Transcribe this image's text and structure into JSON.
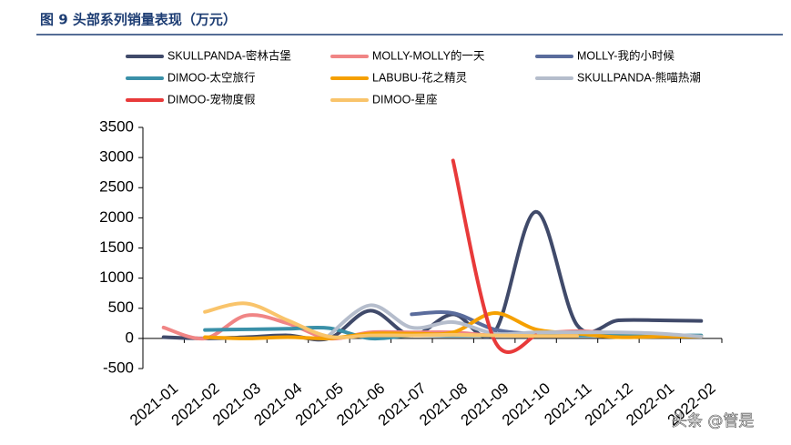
{
  "chart_data": {
    "type": "line",
    "title": "图 9  头部系列销量表现（万元）",
    "watermark": "头条 @管是",
    "categories": [
      "2021-01",
      "2021-02",
      "2021-03",
      "2021-04",
      "2021-05",
      "2021-06",
      "2021-07",
      "2021-08",
      "2021-09",
      "2021-10",
      "2021-11",
      "2021-12",
      "2022-01",
      "2022-02"
    ],
    "ylim": [
      -500,
      3500
    ],
    "yticks": [
      -500,
      0,
      500,
      1000,
      1500,
      2000,
      2500,
      3000,
      3500
    ],
    "series": [
      {
        "name": "SKULLPANDA-密林古堡",
        "color": "#404a6a",
        "values": [
          20,
          0,
          20,
          50,
          0,
          460,
          50,
          400,
          100,
          2100,
          220,
          300,
          300,
          290
        ]
      },
      {
        "name": "MOLLY-MOLLY的一天",
        "color": "#f08585",
        "values": [
          180,
          0,
          380,
          250,
          0,
          100,
          100,
          100,
          50,
          80,
          120,
          80,
          50,
          40
        ]
      },
      {
        "name": "MOLLY-我的小时候",
        "color": "#5a6c9c",
        "values": [
          null,
          null,
          null,
          null,
          null,
          null,
          400,
          420,
          150,
          80,
          100,
          80,
          null,
          null
        ]
      },
      {
        "name": "DIMOO-太空旅行",
        "color": "#3a90a8",
        "values": [
          null,
          140,
          150,
          160,
          170,
          0,
          50,
          50,
          50,
          50,
          50,
          50,
          50,
          50
        ]
      },
      {
        "name": "LABUBU-花之精灵",
        "color": "#f5a000",
        "values": [
          null,
          20,
          0,
          20,
          0,
          80,
          80,
          100,
          420,
          150,
          80,
          20,
          30,
          30
        ]
      },
      {
        "name": "SKULLPANDA-熊喵热潮",
        "color": "#b5bdcc",
        "values": [
          null,
          null,
          null,
          null,
          50,
          550,
          180,
          270,
          80,
          100,
          100,
          100,
          80,
          30
        ]
      },
      {
        "name": "DIMOO-宠物度假",
        "color": "#e83a3a",
        "values": [
          null,
          null,
          null,
          null,
          null,
          null,
          null,
          2950,
          -30,
          50,
          null,
          null,
          null,
          null
        ]
      },
      {
        "name": "DIMOO-星座",
        "color": "#f9c46b",
        "values": [
          null,
          440,
          580,
          300,
          30,
          50,
          50,
          60,
          50,
          40,
          40,
          null,
          null,
          null
        ]
      }
    ]
  }
}
